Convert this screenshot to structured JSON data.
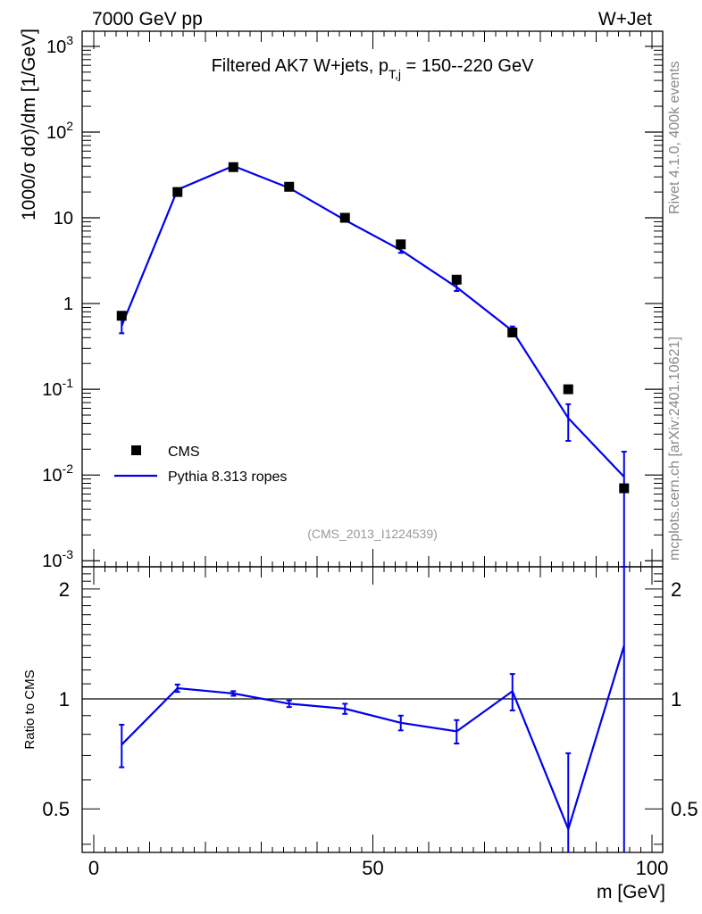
{
  "header": {
    "left": "7000 GeV pp",
    "right": "W+Jet"
  },
  "side_labels": {
    "rivet": "Rivet 4.1.0,  400k events",
    "mcplots": "mcplots.cern.ch [arXiv:2401.10621]"
  },
  "chart_data": [
    {
      "type": "scatter",
      "panel": "main",
      "title": "Filtered AK7 W+jets, p_{T,j} = 150--220 GeV",
      "title_main": "Filtered AK7 W+jets, p",
      "title_sub": "T,j",
      "title_tail": " = 150--220 GeV",
      "ylabel": "1000/σ  dσ)/dm [1/GeV]",
      "xlabel": "",
      "xlim": [
        0,
        100
      ],
      "ylim": [
        0.00085,
        1500
      ],
      "yscale": "log",
      "y_tick_labels": [
        "10^-3",
        "10^-2",
        "10^-1",
        "1",
        "10",
        "10^2",
        "10^3"
      ],
      "watermark": "(CMS_2013_I1224539)",
      "legend_position": "bottom-left",
      "series": [
        {
          "name": "CMS",
          "style": "markers",
          "color": "#000000",
          "x": [
            5,
            15,
            25,
            35,
            45,
            55,
            65,
            75,
            85,
            95
          ],
          "y": [
            0.72,
            20,
            39,
            23,
            10,
            4.9,
            1.9,
            0.46,
            0.1,
            0.007
          ]
        },
        {
          "name": "Pythia 8.313 ropes",
          "style": "line",
          "color": "#0000ee",
          "x": [
            5,
            15,
            25,
            35,
            45,
            55,
            65,
            75,
            85,
            95
          ],
          "y": [
            0.55,
            21.3,
            40.3,
            22.3,
            9.4,
            4.2,
            1.55,
            0.48,
            0.046,
            0.0095
          ],
          "err_low": [
            0.1,
            0.6,
            1.0,
            0.5,
            0.35,
            0.3,
            0.15,
            0.06,
            0.021,
            0.0092
          ],
          "err_high": [
            0.1,
            0.6,
            1.0,
            0.5,
            0.35,
            0.3,
            0.15,
            0.06,
            0.021,
            0.0092
          ]
        }
      ]
    },
    {
      "type": "line",
      "panel": "ratio",
      "ylabel": "Ratio to CMS",
      "xlabel": "m [GeV]",
      "xlim": [
        0,
        100
      ],
      "ylim": [
        0.38,
        2.3
      ],
      "yscale": "log",
      "x_tick_labels": [
        "0",
        "50",
        "100"
      ],
      "y_tick_labels": [
        "0.5",
        "1",
        "2"
      ],
      "reference": 1,
      "series": [
        {
          "name": "Pythia 8.313 ropes",
          "color": "#0000ee",
          "x": [
            5,
            15,
            25,
            35,
            45,
            55,
            65,
            75,
            85,
            95
          ],
          "y": [
            0.75,
            1.07,
            1.035,
            0.97,
            0.94,
            0.86,
            0.815,
            1.05,
            0.44,
            1.4
          ],
          "err_low": [
            0.1,
            0.025,
            0.015,
            0.02,
            0.03,
            0.04,
            0.06,
            0.12,
            0.08,
            1.1
          ],
          "err_high": [
            0.1,
            0.025,
            0.015,
            0.02,
            0.03,
            0.04,
            0.06,
            0.12,
            0.27,
            1.3
          ]
        }
      ]
    }
  ]
}
